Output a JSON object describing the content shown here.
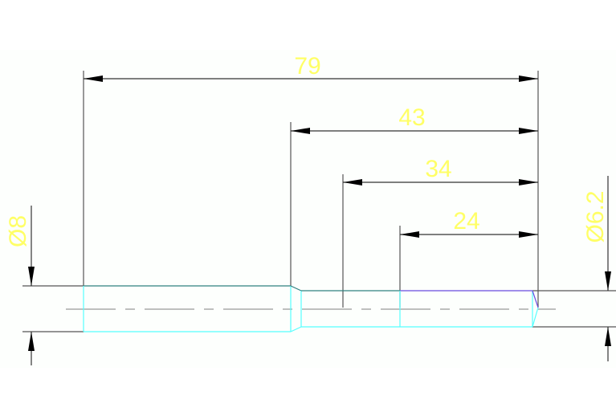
{
  "drawing": {
    "dimensions": {
      "overall_length": "79",
      "length_43": "43",
      "length_34": "34",
      "length_24": "24",
      "diameter_left": "Ø8",
      "diameter_right": "Ø6.2"
    },
    "colors": {
      "dimension_text": "#ffff66",
      "part_edge_cyan": "#55ffff",
      "part_edge_teal": "#2f8080",
      "part_edge_purple": "#6a4be0",
      "dimension_lines": "#333333",
      "center_line": "#999999"
    }
  }
}
